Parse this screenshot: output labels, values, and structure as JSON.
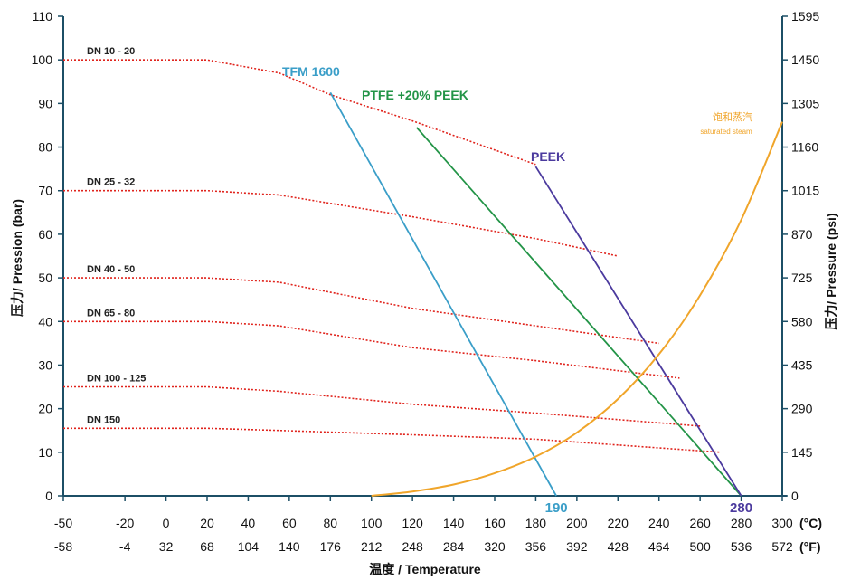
{
  "chart_data": {
    "type": "line",
    "xlabel": "温度 / Temperature",
    "ylabel_left": "压力/ Pression (bar)",
    "ylabel_right": "压力/ Pressure  (psi)",
    "x_unit_c": "(°C)",
    "x_unit_f": "(°F)",
    "xlim": [
      -50,
      300
    ],
    "ylim": [
      0,
      110
    ],
    "x_ticks_c": [
      "-50",
      "-20",
      "0",
      "20",
      "40",
      "60",
      "80",
      "100",
      "120",
      "140",
      "160",
      "180",
      "200",
      "220",
      "240",
      "260",
      "280",
      "300"
    ],
    "x_ticks_c_values": [
      -50,
      -20,
      0,
      20,
      40,
      60,
      80,
      100,
      120,
      140,
      160,
      180,
      200,
      220,
      240,
      260,
      280,
      300
    ],
    "x_ticks_f": [
      "-58",
      "-4",
      "32",
      "68",
      "104",
      "140",
      "176",
      "212",
      "248",
      "284",
      "320",
      "356",
      "392",
      "428",
      "464",
      "500",
      "536",
      "572"
    ],
    "y_ticks_left": [
      "0",
      "10",
      "20",
      "30",
      "40",
      "50",
      "60",
      "70",
      "80",
      "90",
      "100",
      "110"
    ],
    "y_ticks_left_values": [
      0,
      10,
      20,
      30,
      40,
      50,
      60,
      70,
      80,
      90,
      100,
      110
    ],
    "y_ticks_right": [
      "0",
      "145",
      "290",
      "435",
      "580",
      "725",
      "870",
      "1015",
      "1160",
      "1305",
      "1450",
      "1595"
    ],
    "grid": false,
    "dn_series": [
      {
        "name": "DN 10 - 20",
        "color": "#e0231c",
        "points": [
          [
            -50,
            100
          ],
          [
            20,
            100
          ],
          [
            55,
            97
          ],
          [
            80,
            92
          ],
          [
            120,
            86
          ],
          [
            150,
            81
          ],
          [
            180,
            76
          ]
        ]
      },
      {
        "name": "DN 25 - 32",
        "color": "#e0231c",
        "points": [
          [
            -50,
            70
          ],
          [
            20,
            70
          ],
          [
            55,
            69
          ],
          [
            120,
            64
          ],
          [
            180,
            59
          ],
          [
            220,
            55
          ]
        ]
      },
      {
        "name": "DN 40 - 50",
        "color": "#e0231c",
        "points": [
          [
            -50,
            50
          ],
          [
            20,
            50
          ],
          [
            55,
            49
          ],
          [
            120,
            43
          ],
          [
            180,
            39
          ],
          [
            240,
            35
          ]
        ]
      },
      {
        "name": "DN 65 - 80",
        "color": "#e0231c",
        "points": [
          [
            -50,
            40
          ],
          [
            20,
            40
          ],
          [
            55,
            39
          ],
          [
            120,
            34
          ],
          [
            180,
            31
          ],
          [
            250,
            27
          ]
        ]
      },
      {
        "name": "DN 100 - 125",
        "color": "#e0231c",
        "points": [
          [
            -50,
            25
          ],
          [
            20,
            25
          ],
          [
            55,
            24
          ],
          [
            120,
            21
          ],
          [
            180,
            19
          ],
          [
            260,
            16
          ]
        ]
      },
      {
        "name": "DN 150",
        "color": "#e0231c",
        "points": [
          [
            -50,
            15.5
          ],
          [
            20,
            15.5
          ],
          [
            55,
            15
          ],
          [
            120,
            14
          ],
          [
            180,
            13
          ],
          [
            270,
            10
          ]
        ]
      }
    ],
    "material_series": [
      {
        "name": "TFM 1600",
        "color": "#3a9ec8",
        "points": [
          [
            80,
            92.5
          ],
          [
            190,
            0
          ]
        ]
      },
      {
        "name": "PTFE +20% PEEK",
        "color": "#239447",
        "points": [
          [
            122,
            84.5
          ],
          [
            280,
            0
          ]
        ]
      },
      {
        "name": "PEEK",
        "color": "#4b3a9e",
        "points": [
          [
            180,
            75.5
          ],
          [
            280,
            0
          ]
        ]
      }
    ],
    "steam_curve": {
      "name": "饱和蒸汽",
      "subname": "saturated steam",
      "color": "#f0a52a",
      "points": [
        [
          100,
          0
        ],
        [
          120,
          1
        ],
        [
          140,
          2.6
        ],
        [
          160,
          5.2
        ],
        [
          180,
          9
        ],
        [
          200,
          14.5
        ],
        [
          220,
          22.2
        ],
        [
          240,
          32.5
        ],
        [
          260,
          46
        ],
        [
          280,
          63.3
        ],
        [
          300,
          85.8
        ]
      ]
    },
    "end_labels": [
      {
        "text": "190",
        "x": 190,
        "color": "#3a9ec8"
      },
      {
        "text": "280",
        "x": 280,
        "color": "#4b3a9e"
      }
    ]
  }
}
